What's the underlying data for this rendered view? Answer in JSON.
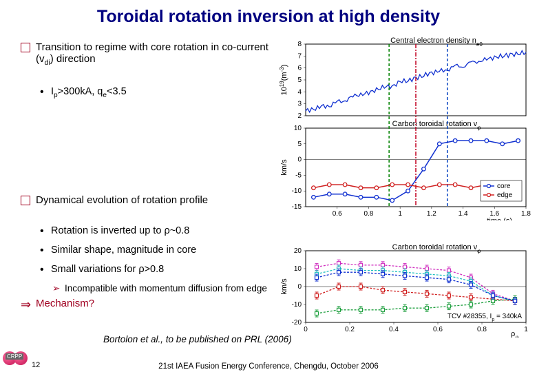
{
  "title": "Toroidal rotation inversion at high density",
  "bullets": {
    "b1a_pre": "Transition to regime with core rotation in co-current (v",
    "b1a_sub": "di",
    "b1a_post": ") direction",
    "b2a_pre": "I",
    "b2a_sub1": "p",
    "b2a_mid": ">300kA, q",
    "b2a_sub2": "e",
    "b2a_post": "<3.5",
    "b1b": "Dynamical evolution of rotation profile",
    "b2b_pre": "Rotation is inverted up to ",
    "b2b_sym": "ρ",
    "b2b_post": "~0.8",
    "b2c": "Similar shape, magnitude in core",
    "b2d_pre": "Small variations for ",
    "b2d_sym": "ρ",
    "b2d_post": ">0.8",
    "b3a": "Incompatible with momentum diffusion from edge",
    "arrow": "Mechanism?"
  },
  "citation": "Bortolon et al., to be published on PRL (2006)",
  "footer": "21st IAEA Fusion Energy Conference, Chengdu, October 2006",
  "slide_num": "12",
  "crpp_label": "CRPP",
  "colors": {
    "blue": "#1030d0",
    "red": "#d02020",
    "green": "#20a040",
    "magenta": "#d030c0",
    "cyan": "#20c0c0",
    "dash1": "#008000",
    "dash2": "#c00020",
    "dash3": "#0040c0"
  },
  "top_chart": {
    "panel1": {
      "title_pre": "Central electron density n",
      "title_sub": "e0",
      "ylabel_pre": "10",
      "ylabel_sup": "19",
      "ylabel_post": "(m",
      "ylabel_sup2": "-3",
      "ylabel_post2": ")",
      "ylim": [
        2,
        8
      ],
      "yticks": [
        2,
        3,
        4,
        5,
        6,
        7,
        8
      ],
      "xlim": [
        0.4,
        1.8
      ],
      "data_x": [
        0.4,
        0.45,
        0.5,
        0.55,
        0.6,
        0.65,
        0.7,
        0.75,
        0.8,
        0.85,
        0.9,
        0.95,
        1.0,
        1.05,
        1.1,
        1.15,
        1.2,
        1.25,
        1.3,
        1.35,
        1.4,
        1.45,
        1.5,
        1.55,
        1.6,
        1.65,
        1.7,
        1.75,
        1.8
      ],
      "data_y": [
        2.4,
        2.6,
        2.7,
        2.9,
        3.1,
        3.3,
        3.6,
        3.8,
        3.9,
        4.2,
        4.4,
        4.5,
        4.8,
        5.0,
        5.1,
        5.4,
        5.6,
        5.7,
        5.9,
        6.1,
        6.2,
        6.4,
        6.6,
        6.7,
        6.9,
        7.0,
        7.1,
        7.2,
        7.3
      ],
      "line_color": "#1030d0"
    },
    "panel2": {
      "title_pre": "Carbon toroidal rotation v",
      "title_sub": "φ",
      "ylabel": "km/s",
      "ylim": [
        -15,
        10
      ],
      "yticks": [
        -15,
        -10,
        -5,
        0,
        5,
        10
      ],
      "xlim": [
        0.4,
        1.8
      ],
      "xticks": [
        0.6,
        0.8,
        1.0,
        1.2,
        1.4,
        1.6,
        1.8
      ],
      "xlabel": "time (s)",
      "vlines": [
        {
          "x": 0.93,
          "color": "#008000",
          "style": "dash"
        },
        {
          "x": 1.1,
          "color": "#c00020",
          "style": "dashdot"
        },
        {
          "x": 1.3,
          "color": "#0040c0",
          "style": "dash"
        }
      ],
      "legend": [
        {
          "label": "core",
          "color": "#1030d0"
        },
        {
          "label": "edge",
          "color": "#d02020"
        }
      ],
      "core_x": [
        0.45,
        0.55,
        0.65,
        0.75,
        0.85,
        0.95,
        1.05,
        1.15,
        1.25,
        1.35,
        1.45,
        1.55,
        1.65,
        1.75
      ],
      "core_y": [
        -12,
        -11,
        -11,
        -12,
        -12,
        -13,
        -10,
        -3,
        5,
        6,
        6,
        6,
        5,
        6
      ],
      "edge_x": [
        0.45,
        0.55,
        0.65,
        0.75,
        0.85,
        0.95,
        1.05,
        1.15,
        1.25,
        1.35,
        1.45,
        1.55,
        1.65,
        1.75
      ],
      "edge_y": [
        -9,
        -8,
        -8,
        -9,
        -9,
        -8,
        -8,
        -9,
        -8,
        -8,
        -9,
        -8,
        -8,
        -9
      ]
    }
  },
  "bot_chart": {
    "title_pre": "Carbon toroidal rotation v",
    "title_sub": "φ",
    "ylabel": "km/s",
    "ylim": [
      -20,
      20
    ],
    "yticks": [
      -20,
      -10,
      0,
      10,
      20
    ],
    "xlim": [
      0,
      1
    ],
    "xticks": [
      0,
      0.2,
      0.4,
      0.6,
      0.8,
      1
    ],
    "xlabel_pre": "ρ",
    "xlabel_sub": "ψ",
    "annotation_pre": "TCV #28355, I",
    "annotation_sub": "p",
    "annotation_post": " = 340kA",
    "series": [
      {
        "color": "#d030c0",
        "x": [
          0.05,
          0.15,
          0.25,
          0.35,
          0.45,
          0.55,
          0.65,
          0.75,
          0.85,
          0.95
        ],
        "y": [
          11,
          13,
          12,
          12,
          11,
          10,
          9,
          5,
          -4,
          -8
        ]
      },
      {
        "color": "#20c0c0",
        "x": [
          0.05,
          0.15,
          0.25,
          0.35,
          0.45,
          0.55,
          0.65,
          0.75,
          0.85,
          0.95
        ],
        "y": [
          7,
          10,
          9,
          9,
          8,
          7,
          6,
          3,
          -5,
          -8
        ]
      },
      {
        "color": "#d02020",
        "x": [
          0.05,
          0.15,
          0.25,
          0.35,
          0.45,
          0.55,
          0.65,
          0.75,
          0.85,
          0.95
        ],
        "y": [
          -5,
          0,
          0,
          -2,
          -3,
          -4,
          -5,
          -6,
          -7,
          -8
        ]
      },
      {
        "color": "#20a040",
        "x": [
          0.05,
          0.15,
          0.25,
          0.35,
          0.45,
          0.55,
          0.65,
          0.75,
          0.85,
          0.95
        ],
        "y": [
          -15,
          -13,
          -13,
          -13,
          -12,
          -12,
          -11,
          -10,
          -8,
          -7
        ]
      },
      {
        "color": "#1030d0",
        "x": [
          0.05,
          0.15,
          0.25,
          0.35,
          0.45,
          0.55,
          0.65,
          0.75,
          0.85,
          0.95
        ],
        "y": [
          5,
          8,
          8,
          7,
          6,
          5,
          4,
          1,
          -5,
          -8
        ]
      }
    ]
  }
}
